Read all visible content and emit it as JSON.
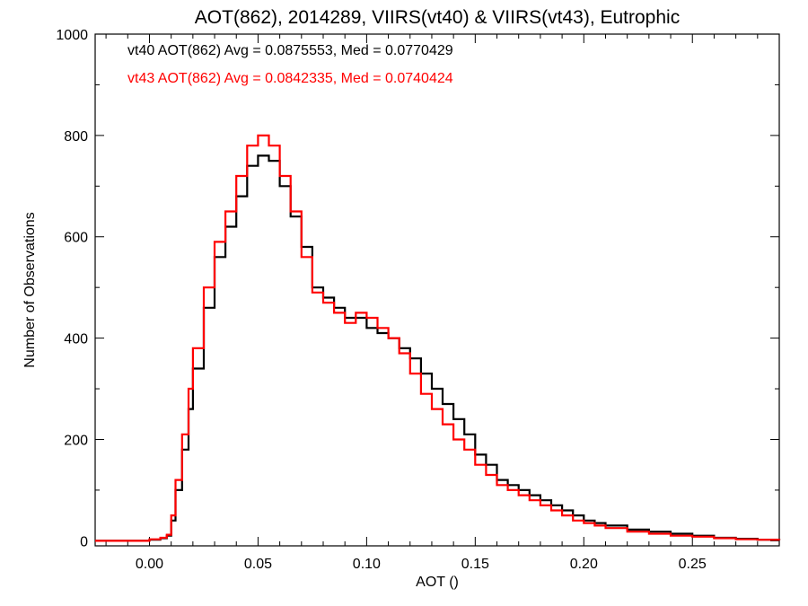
{
  "chart_data": {
    "type": "line",
    "step": true,
    "title": "AOT(862), 2014289, VIIRS(vt40) & VIIRS(vt43), Eutrophic",
    "xlabel": "AOT ()",
    "ylabel": "Number of Observations",
    "xlim": [
      -0.025,
      0.29
    ],
    "ylim": [
      -10,
      1000
    ],
    "xticks": [
      0.0,
      0.05,
      0.1,
      0.15,
      0.2,
      0.25
    ],
    "xtick_labels": [
      "0.00",
      "0.05",
      "0.10",
      "0.15",
      "0.20",
      "0.25"
    ],
    "yticks": [
      0,
      200,
      400,
      600,
      800,
      1000
    ],
    "ytick_labels": [
      "0",
      "200",
      "400",
      "600",
      "800",
      "1000"
    ],
    "grid": false,
    "legend_position": "top-left",
    "series": [
      {
        "name": "vt40",
        "color": "#000000",
        "label": "vt40 AOT(862) Avg = 0.0875553, Med = 0.0770429",
        "x": [
          -0.025,
          0.0,
          0.005,
          0.008,
          0.01,
          0.012,
          0.015,
          0.018,
          0.02,
          0.025,
          0.03,
          0.035,
          0.04,
          0.045,
          0.05,
          0.055,
          0.06,
          0.065,
          0.07,
          0.075,
          0.08,
          0.085,
          0.09,
          0.095,
          0.1,
          0.105,
          0.11,
          0.115,
          0.12,
          0.125,
          0.13,
          0.135,
          0.14,
          0.145,
          0.15,
          0.155,
          0.16,
          0.165,
          0.17,
          0.175,
          0.18,
          0.185,
          0.19,
          0.195,
          0.2,
          0.205,
          0.21,
          0.22,
          0.23,
          0.24,
          0.25,
          0.26,
          0.27,
          0.28,
          0.29
        ],
        "y": [
          0,
          2,
          5,
          10,
          40,
          100,
          180,
          260,
          340,
          460,
          560,
          620,
          680,
          740,
          760,
          750,
          700,
          640,
          580,
          500,
          480,
          460,
          440,
          440,
          420,
          410,
          400,
          380,
          360,
          330,
          300,
          270,
          240,
          210,
          170,
          150,
          120,
          110,
          100,
          90,
          80,
          70,
          60,
          50,
          40,
          35,
          30,
          22,
          18,
          14,
          10,
          6,
          4,
          2,
          1
        ]
      },
      {
        "name": "vt43",
        "color": "#ff0000",
        "label": "vt43 AOT(862) Avg = 0.0842335, Med = 0.0740424",
        "x": [
          -0.025,
          0.0,
          0.005,
          0.008,
          0.01,
          0.012,
          0.015,
          0.018,
          0.02,
          0.025,
          0.03,
          0.035,
          0.04,
          0.045,
          0.05,
          0.055,
          0.06,
          0.065,
          0.07,
          0.075,
          0.08,
          0.085,
          0.09,
          0.095,
          0.1,
          0.105,
          0.11,
          0.115,
          0.12,
          0.125,
          0.13,
          0.135,
          0.14,
          0.145,
          0.15,
          0.155,
          0.16,
          0.165,
          0.17,
          0.175,
          0.18,
          0.185,
          0.19,
          0.195,
          0.2,
          0.205,
          0.21,
          0.22,
          0.23,
          0.24,
          0.25,
          0.26,
          0.27,
          0.28,
          0.29
        ],
        "y": [
          0,
          3,
          6,
          12,
          50,
          120,
          210,
          300,
          380,
          500,
          590,
          650,
          720,
          780,
          800,
          780,
          720,
          650,
          560,
          490,
          470,
          450,
          430,
          450,
          440,
          420,
          400,
          370,
          330,
          290,
          260,
          230,
          200,
          180,
          150,
          130,
          110,
          100,
          90,
          80,
          70,
          60,
          50,
          40,
          35,
          30,
          25,
          18,
          14,
          10,
          8,
          5,
          3,
          2,
          1
        ]
      }
    ]
  }
}
